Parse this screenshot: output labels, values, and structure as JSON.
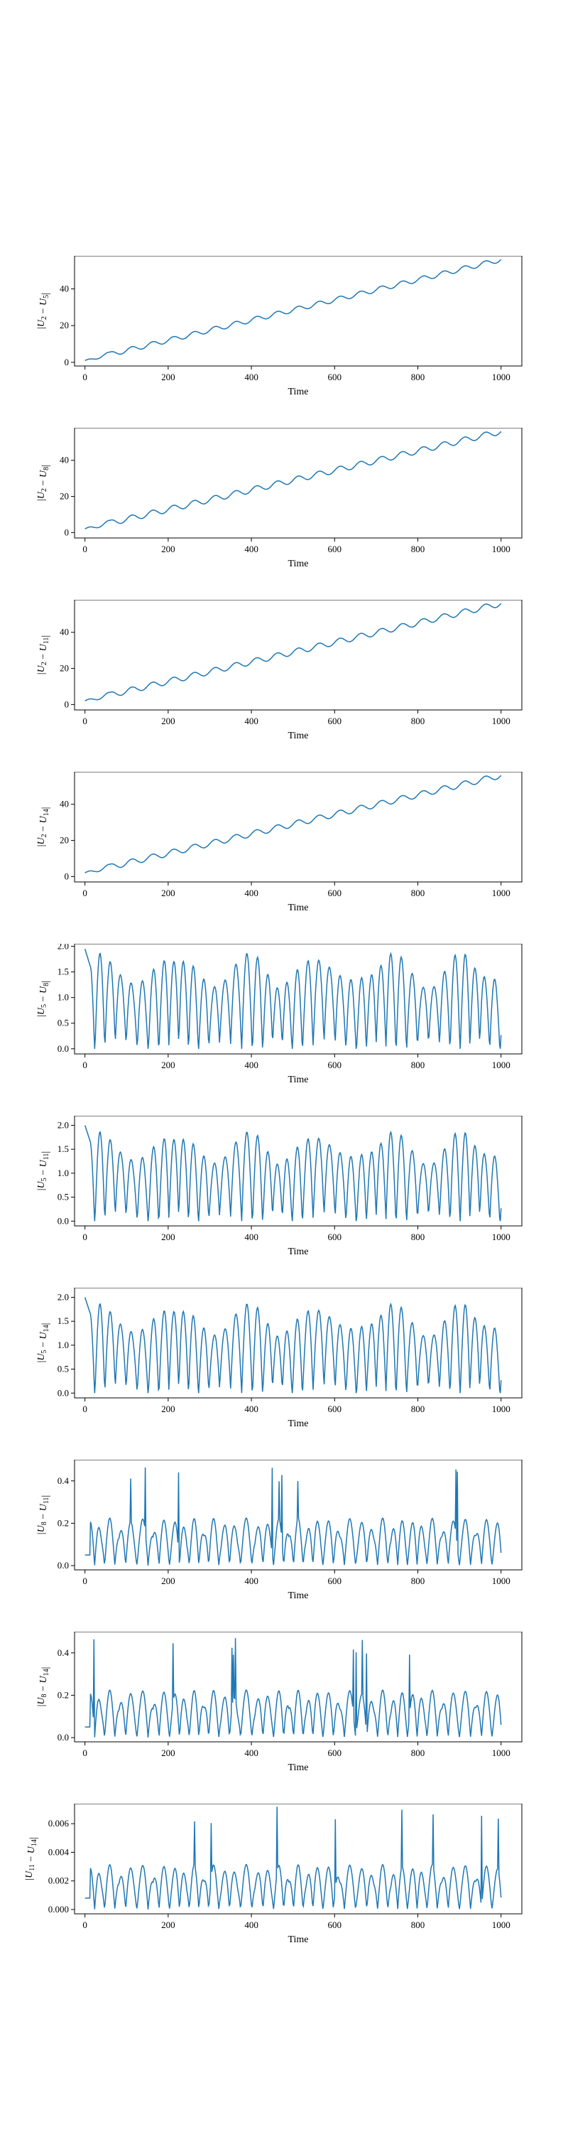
{
  "chart_data": [
    {
      "type": "line",
      "xlabel": "Time",
      "ylabel": "|U_2 - U_5|",
      "ylabel_sub": [
        "2",
        "5"
      ],
      "xlim": [
        -25,
        1050
      ],
      "ylim": [
        -2,
        58
      ],
      "xticks": [
        0,
        200,
        400,
        600,
        800,
        1000
      ],
      "yticks": [
        0,
        20,
        40
      ],
      "color": "#1f77b4",
      "x": [
        0,
        1000
      ],
      "profile": "trend",
      "trend": {
        "start": 1,
        "end": 56,
        "osc_amp": 1.3,
        "osc_period": 50
      }
    },
    {
      "type": "line",
      "xlabel": "Time",
      "ylabel": "|U_2 - U_8|",
      "ylabel_sub": [
        "2",
        "8"
      ],
      "xlim": [
        -25,
        1050
      ],
      "ylim": [
        -3,
        58
      ],
      "xticks": [
        0,
        200,
        400,
        600,
        800,
        1000
      ],
      "yticks": [
        0,
        20,
        40
      ],
      "color": "#1f77b4",
      "x": [
        0,
        1000
      ],
      "profile": "trend",
      "trend": {
        "start": 2,
        "end": 56,
        "osc_amp": 1.6,
        "osc_period": 50
      }
    },
    {
      "type": "line",
      "xlabel": "Time",
      "ylabel": "|U_2 - U_11|",
      "ylabel_sub": [
        "2",
        "11"
      ],
      "xlim": [
        -25,
        1050
      ],
      "ylim": [
        -3,
        58
      ],
      "xticks": [
        0,
        200,
        400,
        600,
        800,
        1000
      ],
      "yticks": [
        0,
        20,
        40
      ],
      "color": "#1f77b4",
      "x": [
        0,
        1000
      ],
      "profile": "trend",
      "trend": {
        "start": 2,
        "end": 56,
        "osc_amp": 1.6,
        "osc_period": 50
      }
    },
    {
      "type": "line",
      "xlabel": "Time",
      "ylabel": "|U_2 - U_14|",
      "ylabel_sub": [
        "2",
        "14"
      ],
      "xlim": [
        -25,
        1050
      ],
      "ylim": [
        -3,
        58
      ],
      "xticks": [
        0,
        200,
        400,
        600,
        800,
        1000
      ],
      "yticks": [
        0,
        20,
        40
      ],
      "color": "#1f77b4",
      "x": [
        0,
        1000
      ],
      "profile": "trend",
      "trend": {
        "start": 2,
        "end": 56,
        "osc_amp": 1.6,
        "osc_period": 50
      }
    },
    {
      "type": "line",
      "xlabel": "Time",
      "ylabel": "|U_5 - U_8|",
      "ylabel_sub": [
        "5",
        "8"
      ],
      "xlim": [
        -25,
        1050
      ],
      "ylim": [
        -0.1,
        2.05
      ],
      "xticks": [
        0,
        200,
        400,
        600,
        800,
        1000
      ],
      "yticks": [
        0.0,
        0.5,
        1.0,
        1.5,
        2.0
      ],
      "color": "#1f77b4",
      "x": [
        0,
        1000
      ],
      "profile": "oscillation",
      "osc": {
        "amp": 1.8,
        "max": 1.95,
        "period": 25,
        "start": 1.95
      }
    },
    {
      "type": "line",
      "xlabel": "Time",
      "ylabel": "|U_5 - U_11|",
      "ylabel_sub": [
        "5",
        "11"
      ],
      "xlim": [
        -25,
        1050
      ],
      "ylim": [
        -0.1,
        2.2
      ],
      "xticks": [
        0,
        200,
        400,
        600,
        800,
        1000
      ],
      "yticks": [
        0.0,
        0.5,
        1.0,
        1.5,
        2.0
      ],
      "color": "#1f77b4",
      "x": [
        0,
        1000
      ],
      "profile": "oscillation",
      "osc": {
        "amp": 1.8,
        "max": 2.15,
        "period": 25,
        "start": 2.0
      }
    },
    {
      "type": "line",
      "xlabel": "Time",
      "ylabel": "|U_5 - U_14|",
      "ylabel_sub": [
        "5",
        "14"
      ],
      "xlim": [
        -25,
        1050
      ],
      "ylim": [
        -0.1,
        2.2
      ],
      "xticks": [
        0,
        200,
        400,
        600,
        800,
        1000
      ],
      "yticks": [
        0.0,
        0.5,
        1.0,
        1.5,
        2.0
      ],
      "color": "#1f77b4",
      "x": [
        0,
        1000
      ],
      "profile": "oscillation",
      "osc": {
        "amp": 1.8,
        "max": 2.15,
        "period": 25,
        "start": 2.0
      }
    },
    {
      "type": "line",
      "xlabel": "Time",
      "ylabel": "|U_8 - U_11|",
      "ylabel_sub": [
        "8",
        "11"
      ],
      "xlim": [
        -25,
        1050
      ],
      "ylim": [
        -0.02,
        0.5
      ],
      "xticks": [
        0,
        200,
        400,
        600,
        800,
        1000
      ],
      "yticks": [
        0.0,
        0.2,
        0.4
      ],
      "color": "#1f77b4",
      "x": [
        0,
        1000
      ],
      "profile": "spiky",
      "osc": {
        "amp": 0.25,
        "max": 0.47,
        "period": 25,
        "start": 0.05
      }
    },
    {
      "type": "line",
      "xlabel": "Time",
      "ylabel": "|U_8 - U_14|",
      "ylabel_sub": [
        "8",
        "14"
      ],
      "xlim": [
        -25,
        1050
      ],
      "ylim": [
        -0.02,
        0.5
      ],
      "xticks": [
        0,
        200,
        400,
        600,
        800,
        1000
      ],
      "yticks": [
        0.0,
        0.2,
        0.4
      ],
      "color": "#1f77b4",
      "x": [
        0,
        1000
      ],
      "profile": "spiky",
      "osc": {
        "amp": 0.25,
        "max": 0.47,
        "period": 25,
        "start": 0.05
      }
    },
    {
      "type": "line",
      "xlabel": "Time",
      "ylabel": "|U_11 - U_14|",
      "ylabel_sub": [
        "11",
        "14"
      ],
      "xlim": [
        -25,
        1050
      ],
      "ylim": [
        -0.0003,
        0.0074
      ],
      "xticks": [
        0,
        200,
        400,
        600,
        800,
        1000
      ],
      "yticks": [
        0.0,
        0.002,
        0.004,
        0.006
      ],
      "ytick_labels": [
        "0.000",
        "0.002",
        "0.004",
        "0.006"
      ],
      "color": "#1f77b4",
      "x": [
        0,
        1000
      ],
      "profile": "spiky",
      "osc": {
        "amp": 0.0035,
        "max": 0.0072,
        "period": 25,
        "start": 0.0008
      }
    }
  ]
}
